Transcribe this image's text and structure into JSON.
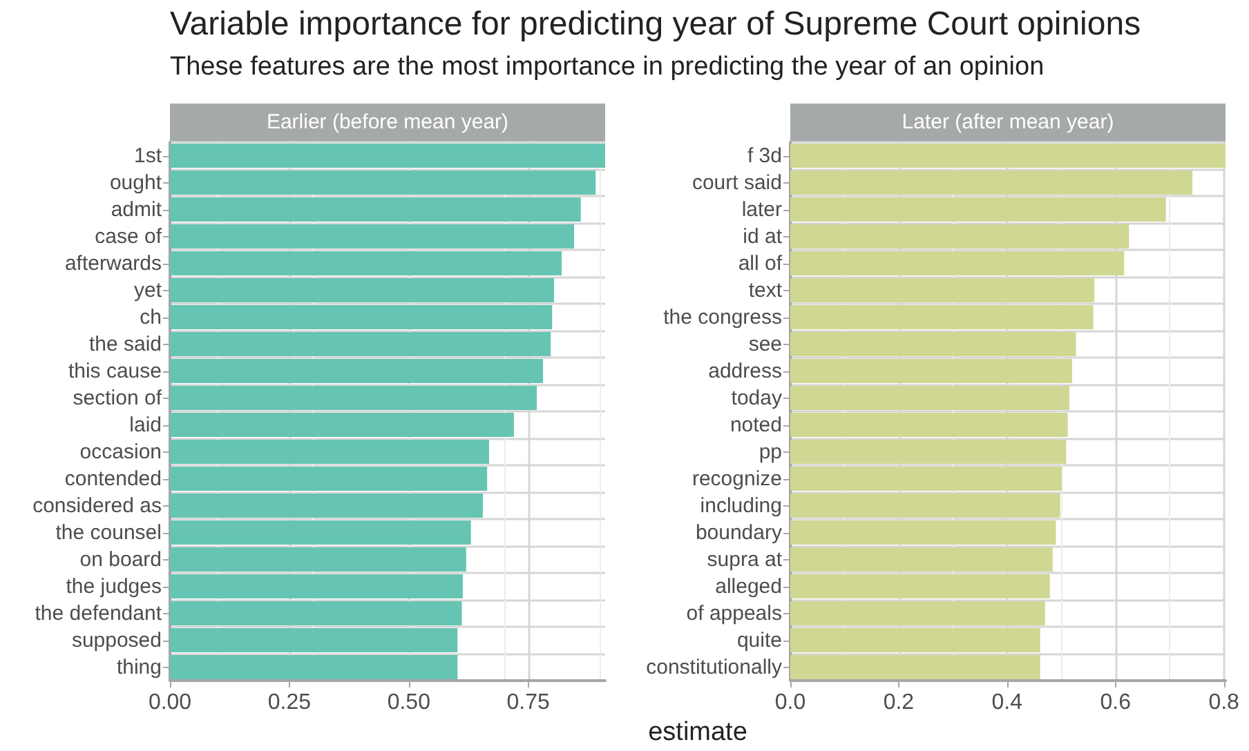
{
  "chart_data": [
    {
      "type": "bar",
      "orientation": "horizontal",
      "title": "Earlier (before mean year)",
      "xlabel": "estimate",
      "annotations": [
        "Variable importance for predicting year of Supreme Court opinions",
        "These features are the most importance in predicting the year of an opinion"
      ],
      "categories": [
        "1st",
        "ought",
        "admit",
        "case of",
        "afterwards",
        "yet",
        "ch",
        "the said",
        "this cause",
        "section of",
        "laid",
        "occasion",
        "contended",
        "considered as",
        "the counsel",
        "on board",
        "the judges",
        "the defendant",
        "supposed",
        "thing"
      ],
      "values": [
        0.911,
        0.891,
        0.86,
        0.846,
        0.82,
        0.804,
        0.8,
        0.797,
        0.781,
        0.768,
        0.72,
        0.668,
        0.664,
        0.655,
        0.63,
        0.62,
        0.613,
        0.611,
        0.602,
        0.602
      ],
      "color": "#66c5b2",
      "xlim": [
        0,
        0.911
      ],
      "xticks": [
        {
          "value": 0,
          "label": "0.00"
        },
        {
          "value": 0.25,
          "label": "0.25"
        },
        {
          "value": 0.5,
          "label": "0.50"
        },
        {
          "value": 0.75,
          "label": "0.75"
        }
      ],
      "grid": true
    },
    {
      "type": "bar",
      "orientation": "horizontal",
      "title": "Later (after mean year)",
      "categories": [
        "f 3d",
        "court said",
        "later",
        "id at",
        "all of",
        "text",
        "the congress",
        "see",
        "address",
        "today",
        "noted",
        "pp",
        "recognize",
        "including",
        "boundary",
        "supra at",
        "alleged",
        "of appeals",
        "quite",
        "constitutionally"
      ],
      "values": [
        0.803,
        0.742,
        0.693,
        0.625,
        0.616,
        0.561,
        0.559,
        0.527,
        0.52,
        0.515,
        0.512,
        0.509,
        0.501,
        0.498,
        0.49,
        0.484,
        0.479,
        0.47,
        0.461,
        0.461
      ],
      "color": "#d0d793",
      "xlim": [
        0,
        0.803
      ],
      "xticks": [
        {
          "value": 0,
          "label": "0.0"
        },
        {
          "value": 0.2,
          "label": "0.2"
        },
        {
          "value": 0.4,
          "label": "0.4"
        },
        {
          "value": 0.6,
          "label": "0.6"
        },
        {
          "value": 0.8,
          "label": "0.8"
        }
      ],
      "grid": true
    }
  ]
}
